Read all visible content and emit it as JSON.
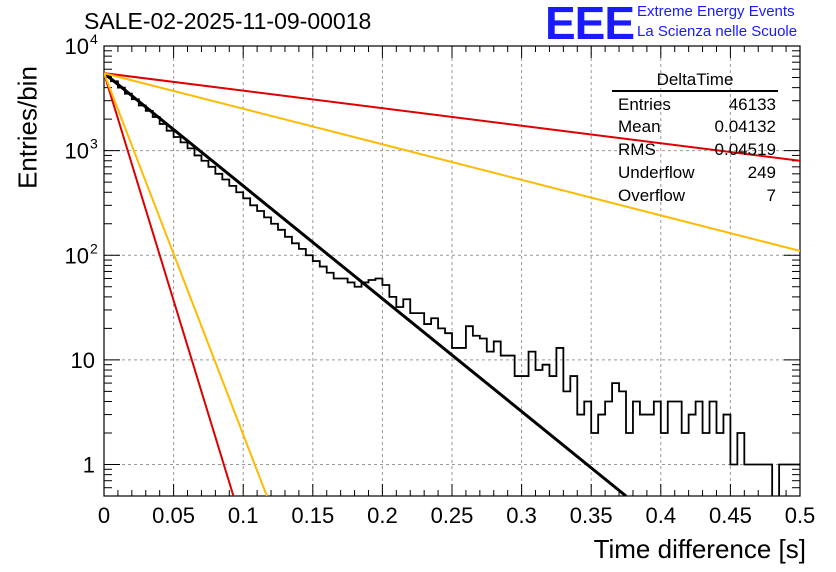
{
  "title": "SALE-02-2025-11-09-00018",
  "logo": {
    "text": "EEE",
    "line1": "Extreme Energy Events",
    "line2": "La Scienza nelle Scuole",
    "color": "#1a1aff"
  },
  "stats": {
    "title": "DeltaTime",
    "rows": [
      {
        "key": "Entries",
        "value": "46133"
      },
      {
        "key": "Mean",
        "value": "0.04132"
      },
      {
        "key": "RMS",
        "value": "0.04519"
      },
      {
        "key": "Underflow",
        "value": "249"
      },
      {
        "key": "Overflow",
        "value": "7"
      }
    ]
  },
  "chart_data": {
    "type": "line",
    "title": "SALE-02-2025-11-09-00018",
    "xlabel": "Time difference [s]",
    "ylabel": "Entries/bin",
    "xlim": [
      0,
      0.5
    ],
    "ylim": [
      0.5,
      10000
    ],
    "yscale": "log",
    "grid": true,
    "x_ticks": [
      "0",
      "0.05",
      "0.1",
      "0.15",
      "0.2",
      "0.25",
      "0.3",
      "0.35",
      "0.4",
      "0.45",
      "0.5"
    ],
    "y_ticks": [
      {
        "value": 1,
        "label": "1"
      },
      {
        "value": 10,
        "label": "10"
      },
      {
        "value": 100,
        "label": "10",
        "exp": "2"
      },
      {
        "value": 1000,
        "label": "10",
        "exp": "3"
      },
      {
        "value": 10000,
        "label": "10",
        "exp": "4"
      }
    ],
    "histogram": {
      "name": "DeltaTime",
      "bin_width": 0.005,
      "x_start": 0,
      "values": [
        5200,
        4600,
        4000,
        3500,
        3100,
        2700,
        2400,
        2100,
        1800,
        1550,
        1350,
        1200,
        1050,
        900,
        800,
        700,
        600,
        530,
        460,
        400,
        350,
        300,
        265,
        230,
        200,
        175,
        150,
        130,
        115,
        100,
        88,
        78,
        68,
        60,
        60,
        55,
        50,
        55,
        58,
        60,
        52,
        40,
        32,
        38,
        28,
        28,
        22,
        25,
        20,
        18,
        13,
        13,
        21,
        17,
        16,
        12,
        15,
        11,
        11,
        7,
        7,
        12,
        8,
        9,
        7,
        13,
        5,
        7,
        3,
        4,
        2,
        3,
        4,
        6,
        5,
        2,
        4,
        3,
        3,
        4,
        2,
        4,
        4,
        2,
        3,
        4,
        2,
        4,
        2,
        3,
        1,
        2,
        1,
        1,
        1,
        1,
        0,
        1,
        1,
        1
      ]
    },
    "series": [
      {
        "name": "fit",
        "color": "#000000",
        "x": [
          0,
          0.375
        ],
        "y": [
          5500,
          0.5
        ]
      },
      {
        "name": "upper-steep-red",
        "color": "#dd0000",
        "x": [
          0,
          0.093
        ],
        "y": [
          5500,
          0.5
        ]
      },
      {
        "name": "upper-steep-yellow",
        "color": "#ffbb00",
        "x": [
          0,
          0.117
        ],
        "y": [
          5500,
          0.5
        ]
      },
      {
        "name": "slow-red",
        "color": "#dd0000",
        "x": [
          0,
          0.5
        ],
        "y": [
          5500,
          800
        ]
      },
      {
        "name": "slow-yellow",
        "color": "#ffbb00",
        "x": [
          0,
          0.5
        ],
        "y": [
          5500,
          110
        ]
      }
    ]
  }
}
